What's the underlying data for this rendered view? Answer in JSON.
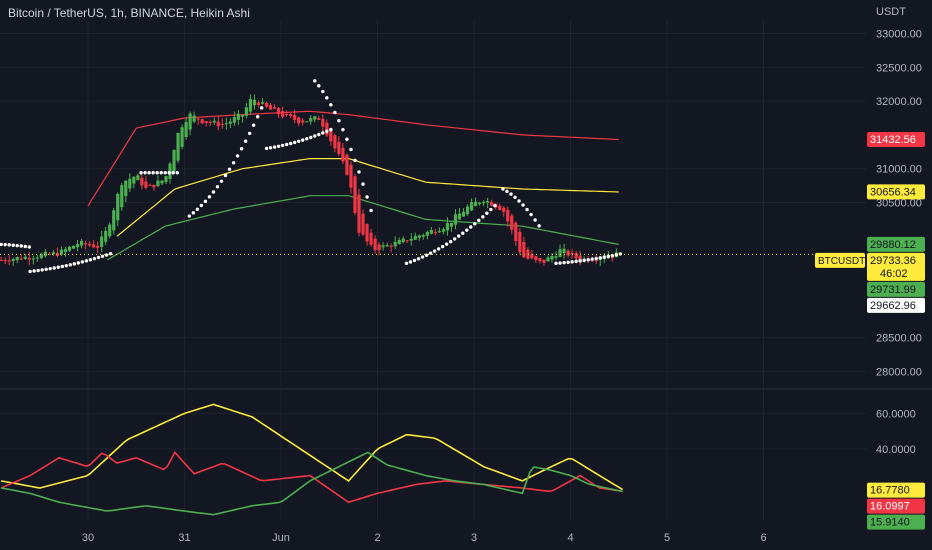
{
  "header": {
    "title": "Bitcoin / TetherUS, 1h, BINANCE, Heikin Ashi",
    "unit": "USDT"
  },
  "colors": {
    "background": "#131722",
    "up": "#26a69a",
    "up_candle": "#4caf50",
    "down": "#f23645",
    "grid": "#1e222d",
    "psar": "#ffffff",
    "ma_red": "#f23645",
    "ma_yellow": "#ffeb3b",
    "ma_green": "#4caf50",
    "dmi_yellow": "#ffeb3b",
    "dmi_red": "#f23645",
    "dmi_green": "#4caf50"
  },
  "chart_data": [
    {
      "type": "candlestick",
      "title": "Bitcoin / TetherUS, 1h, BINANCE, Heikin Ashi",
      "y_ticks": [
        "33000.00",
        "32500.00",
        "32000.00",
        "31000.00",
        "30500.00",
        "28500.00",
        "28000.00"
      ],
      "y_tick_values": [
        33000,
        32500,
        32000,
        31000,
        30500,
        28500,
        28000
      ],
      "ylim": [
        27800,
        33200
      ],
      "x_ticks": [
        "30",
        "31",
        "Jun",
        "2",
        "3",
        "4",
        "5",
        "6"
      ],
      "x_tick_positions_days": [
        0,
        1,
        2,
        3,
        4,
        5,
        6,
        7
      ],
      "x_start_day_offset": -0.9,
      "x_end_day_offset": 8.5,
      "last_candle_day_offset": 5.5,
      "price_anchors": [
        {
          "day": -0.9,
          "price": 29650
        },
        {
          "day": -0.6,
          "price": 29700
        },
        {
          "day": -0.3,
          "price": 29750
        },
        {
          "day": -0.1,
          "price": 29900
        },
        {
          "day": 0.1,
          "price": 29850
        },
        {
          "day": 0.2,
          "price": 30100
        },
        {
          "day": 0.35,
          "price": 30800
        },
        {
          "day": 0.5,
          "price": 30900
        },
        {
          "day": 0.6,
          "price": 30700
        },
        {
          "day": 0.8,
          "price": 30850
        },
        {
          "day": 0.95,
          "price": 31600
        },
        {
          "day": 1.05,
          "price": 31800
        },
        {
          "day": 1.2,
          "price": 31700
        },
        {
          "day": 1.4,
          "price": 31650
        },
        {
          "day": 1.6,
          "price": 31800
        },
        {
          "day": 1.7,
          "price": 32050
        },
        {
          "day": 1.85,
          "price": 31900
        },
        {
          "day": 2.0,
          "price": 31800
        },
        {
          "day": 2.2,
          "price": 31700
        },
        {
          "day": 2.4,
          "price": 31750
        },
        {
          "day": 2.7,
          "price": 30900
        },
        {
          "day": 2.8,
          "price": 30100
        },
        {
          "day": 2.95,
          "price": 29800
        },
        {
          "day": 3.2,
          "price": 29900
        },
        {
          "day": 3.5,
          "price": 30050
        },
        {
          "day": 3.7,
          "price": 30150
        },
        {
          "day": 3.95,
          "price": 30450
        },
        {
          "day": 4.1,
          "price": 30550
        },
        {
          "day": 4.3,
          "price": 30400
        },
        {
          "day": 4.5,
          "price": 29700
        },
        {
          "day": 4.7,
          "price": 29600
        },
        {
          "day": 4.9,
          "price": 29800
        },
        {
          "day": 5.1,
          "price": 29650
        },
        {
          "day": 5.3,
          "price": 29700
        },
        {
          "day": 5.5,
          "price": 29733
        }
      ],
      "lines": [
        {
          "name": "MA red",
          "color_key": "ma_red",
          "points": [
            [
              0.0,
              30450
            ],
            [
              0.5,
              31600
            ],
            [
              1.0,
              31750
            ],
            [
              1.6,
              31800
            ],
            [
              2.3,
              31850
            ],
            [
              2.7,
              31800
            ],
            [
              3.5,
              31650
            ],
            [
              4.5,
              31500
            ],
            [
              5.5,
              31432
            ]
          ]
        },
        {
          "name": "MA yellow",
          "color_key": "ma_yellow",
          "points": [
            [
              0.3,
              30000
            ],
            [
              0.9,
              30700
            ],
            [
              1.6,
              31000
            ],
            [
              2.3,
              31150
            ],
            [
              2.7,
              31150
            ],
            [
              3.5,
              30800
            ],
            [
              4.5,
              30700
            ],
            [
              5.5,
              30656
            ]
          ]
        },
        {
          "name": "MA green",
          "color_key": "ma_green",
          "points": [
            [
              0.2,
              29650
            ],
            [
              0.8,
              30150
            ],
            [
              1.5,
              30400
            ],
            [
              2.3,
              30600
            ],
            [
              2.7,
              30600
            ],
            [
              3.5,
              30250
            ],
            [
              4.5,
              30150
            ],
            [
              5.5,
              29880
            ]
          ]
        }
      ],
      "psar_segments": [
        {
          "from_day": -0.9,
          "to_day": -0.6,
          "from_price": 29880,
          "to_price": 29840
        },
        {
          "from_day": -0.6,
          "to_day": 0.25,
          "from_price": 29480,
          "to_price": 29750
        },
        {
          "from_day": 0.55,
          "to_day": 0.95,
          "from_price": 30940,
          "to_price": 30940
        },
        {
          "from_day": 1.05,
          "to_day": 1.8,
          "from_price": 30300,
          "to_price": 31900
        },
        {
          "from_day": 1.85,
          "to_day": 2.55,
          "from_price": 31300,
          "to_price": 31600
        },
        {
          "from_day": 2.35,
          "to_day": 2.95,
          "from_price": 32300,
          "to_price": 30300
        },
        {
          "from_day": 3.3,
          "to_day": 4.25,
          "from_price": 29600,
          "to_price": 30500
        },
        {
          "from_day": 4.3,
          "to_day": 4.7,
          "from_price": 30700,
          "to_price": 30100
        },
        {
          "from_day": 4.85,
          "to_day": 5.55,
          "from_price": 29600,
          "to_price": 29750
        }
      ],
      "price_labels": [
        {
          "text": "31432.56",
          "value": 31432.56,
          "bg": "#f23645",
          "fg": "#ffffff"
        },
        {
          "text": "30656.34",
          "value": 30656.34,
          "bg": "#ffeb3b",
          "fg": "#131722"
        },
        {
          "text": "29880.12",
          "value": 29880.12,
          "bg": "#4caf50",
          "fg": "#131722"
        },
        {
          "text": "29733.36",
          "value": 29733.36,
          "bg": "#ffeb3b",
          "fg": "#131722",
          "countdown": "46:02",
          "symbol": "BTCUSDT"
        },
        {
          "text": "29731.99",
          "value": 29731.99,
          "bg": "#4caf50",
          "fg": "#131722"
        },
        {
          "text": "29662.96",
          "value": 29662.96,
          "bg": "#ffffff",
          "fg": "#131722"
        }
      ]
    },
    {
      "type": "line",
      "title": "",
      "y_ticks": [
        "60.0000",
        "40.0000"
      ],
      "y_tick_values": [
        60,
        40
      ],
      "ylim": [
        0,
        72
      ],
      "series": [
        {
          "color_key": "dmi_yellow",
          "points": [
            [
              -0.9,
              22
            ],
            [
              -0.5,
              18
            ],
            [
              0,
              25
            ],
            [
              0.4,
              45
            ],
            [
              1.0,
              60
            ],
            [
              1.3,
              65
            ],
            [
              1.7,
              58
            ],
            [
              2.2,
              40
            ],
            [
              2.7,
              22
            ],
            [
              3.0,
              40
            ],
            [
              3.3,
              48
            ],
            [
              3.6,
              46
            ],
            [
              4.1,
              30
            ],
            [
              4.5,
              22
            ],
            [
              4.8,
              30
            ],
            [
              5.0,
              35
            ],
            [
              5.3,
              25
            ],
            [
              5.55,
              16.778
            ]
          ]
        },
        {
          "color_key": "dmi_red",
          "points": [
            [
              -0.9,
              18
            ],
            [
              -0.6,
              25
            ],
            [
              -0.3,
              35
            ],
            [
              0,
              30
            ],
            [
              0.15,
              38
            ],
            [
              0.3,
              32
            ],
            [
              0.5,
              35
            ],
            [
              0.8,
              28
            ],
            [
              0.9,
              38
            ],
            [
              1.1,
              26
            ],
            [
              1.4,
              32
            ],
            [
              1.8,
              22
            ],
            [
              2.3,
              25
            ],
            [
              2.7,
              10
            ],
            [
              3.0,
              15
            ],
            [
              3.4,
              20
            ],
            [
              3.7,
              22
            ],
            [
              4.1,
              20
            ],
            [
              4.5,
              18
            ],
            [
              4.8,
              16
            ],
            [
              5.1,
              25
            ],
            [
              5.3,
              18
            ],
            [
              5.55,
              16.0997
            ]
          ]
        },
        {
          "color_key": "dmi_green",
          "points": [
            [
              -0.9,
              18
            ],
            [
              -0.6,
              15
            ],
            [
              -0.3,
              10
            ],
            [
              0.2,
              5
            ],
            [
              0.6,
              8
            ],
            [
              1.0,
              5
            ],
            [
              1.3,
              3
            ],
            [
              1.7,
              8
            ],
            [
              2.0,
              10
            ],
            [
              2.3,
              22
            ],
            [
              2.6,
              30
            ],
            [
              2.9,
              38
            ],
            [
              3.1,
              31
            ],
            [
              3.5,
              25
            ],
            [
              3.8,
              22
            ],
            [
              4.1,
              20
            ],
            [
              4.5,
              15
            ],
            [
              4.6,
              30
            ],
            [
              4.8,
              28
            ],
            [
              5.0,
              25
            ],
            [
              5.2,
              20
            ],
            [
              5.55,
              15.914
            ]
          ]
        }
      ],
      "value_labels": [
        {
          "text": "16.7780",
          "value": 16.778,
          "bg": "#ffeb3b",
          "fg": "#131722"
        },
        {
          "text": "16.0997",
          "value": 16.0997,
          "bg": "#f23645",
          "fg": "#ffffff"
        },
        {
          "text": "15.9140",
          "value": 15.914,
          "bg": "#4caf50",
          "fg": "#131722"
        }
      ]
    }
  ]
}
